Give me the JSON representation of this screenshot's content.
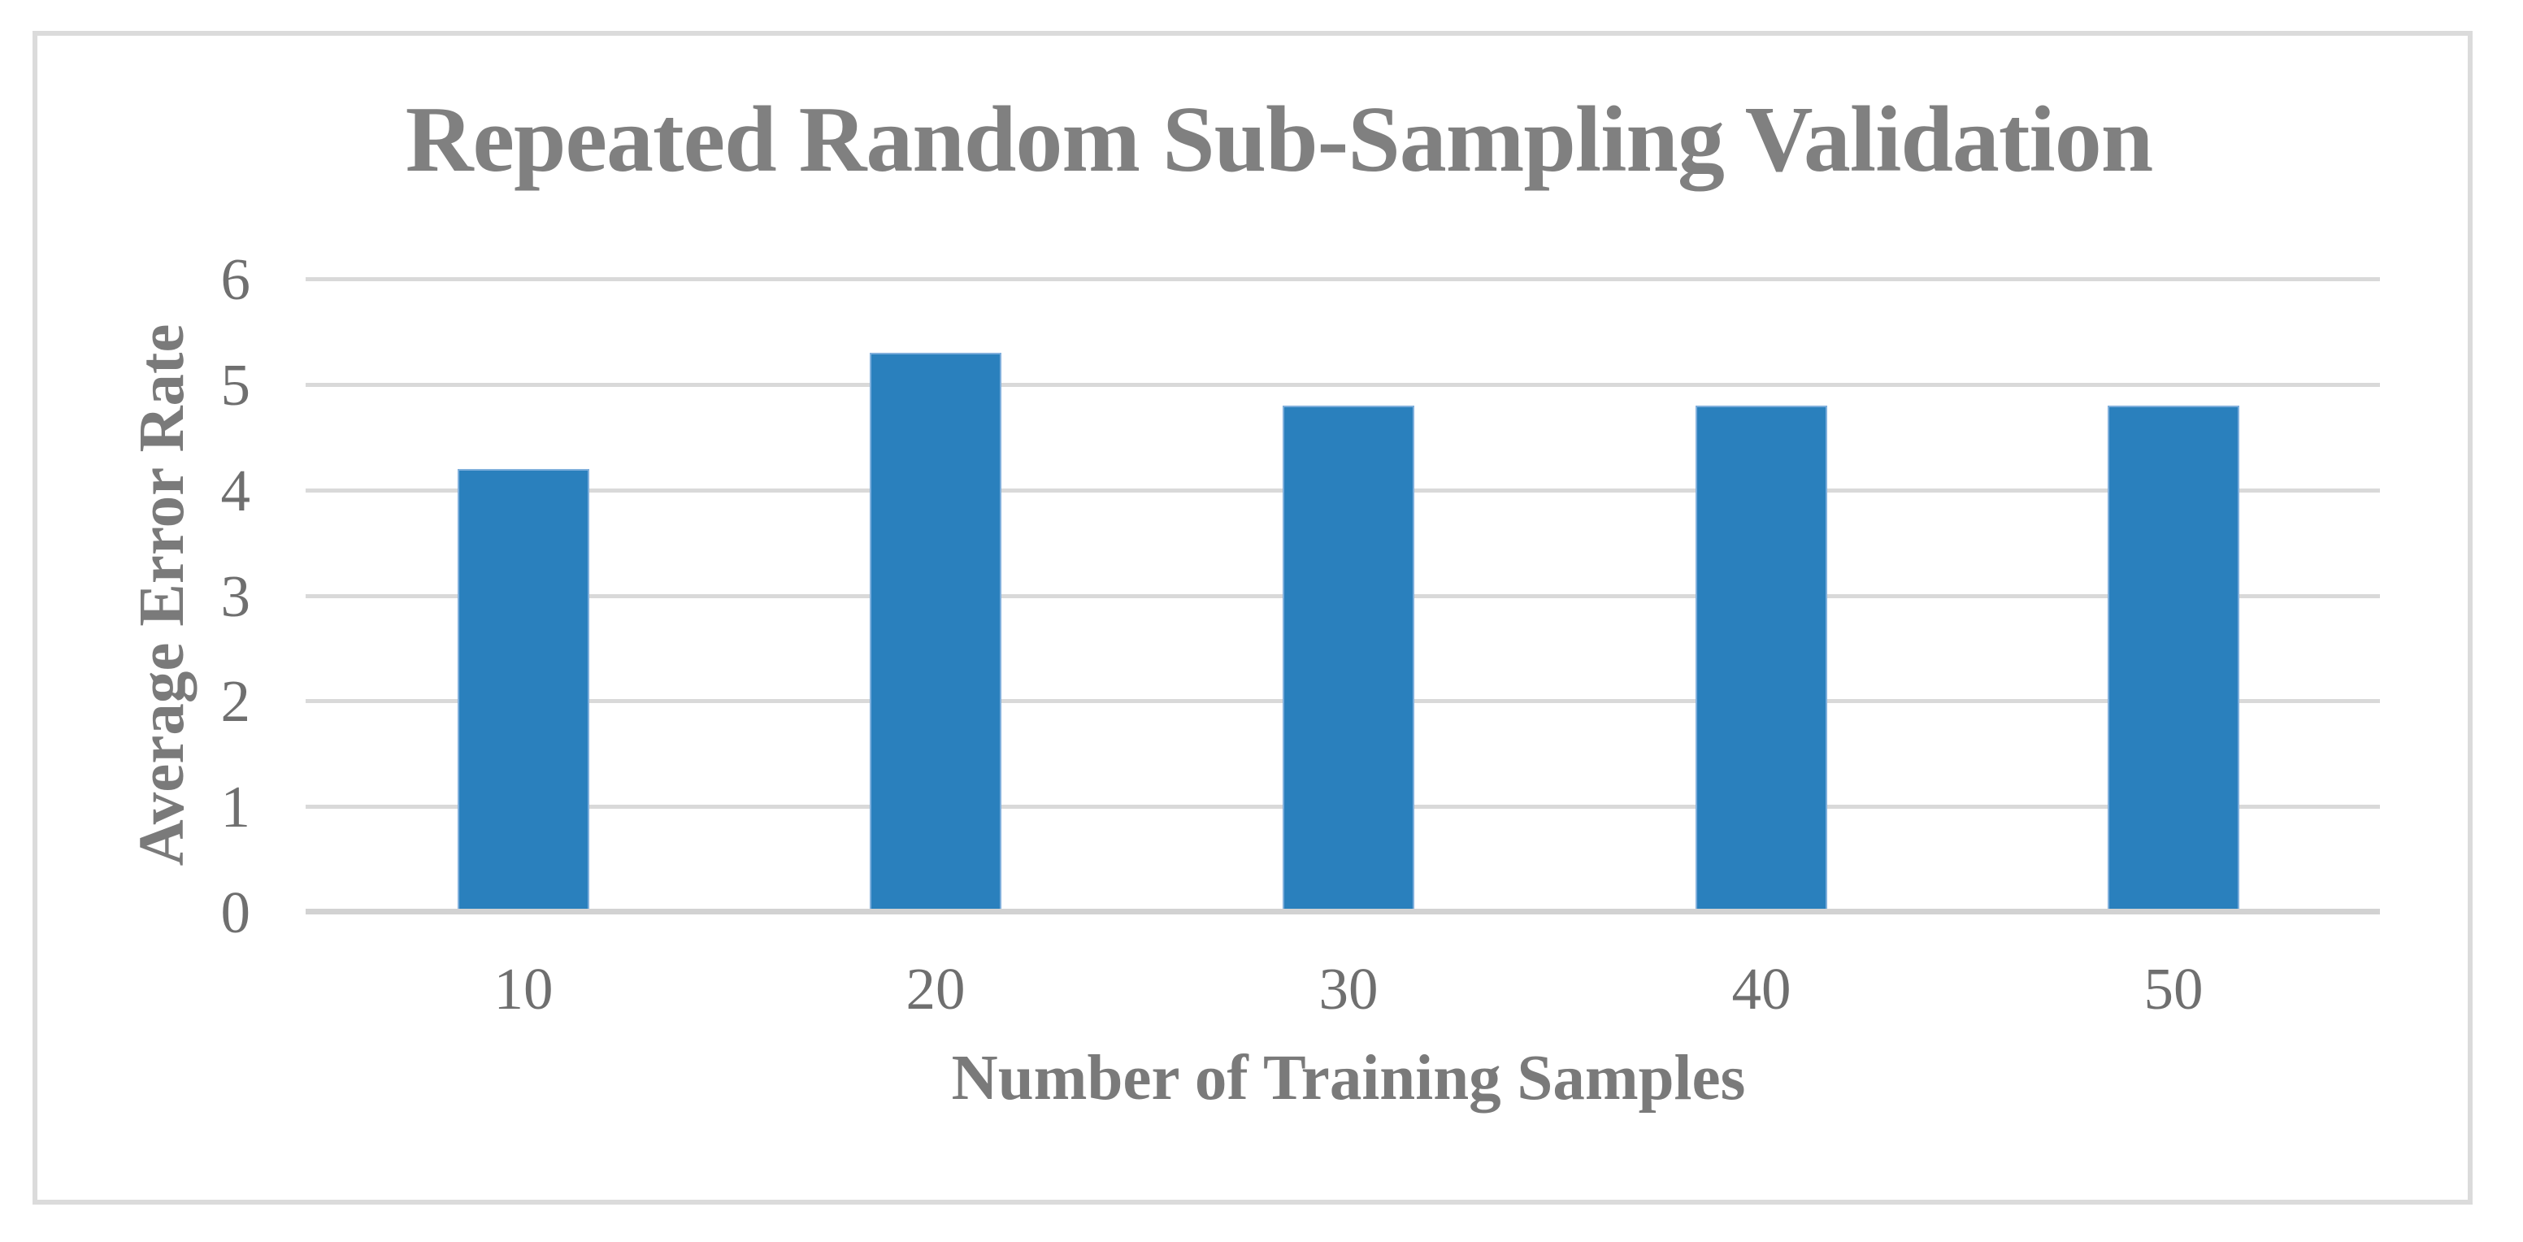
{
  "figure": {
    "title": "Repeated Random Sub-Sampling Validation"
  },
  "chart_data": {
    "type": "bar",
    "title": "Repeated Random Sub-Sampling Validation",
    "xlabel": "Number of Training Samples",
    "ylabel": "Average Error Rate",
    "categories": [
      "10",
      "20",
      "30",
      "40",
      "50"
    ],
    "values": [
      4.2,
      5.3,
      4.8,
      4.8,
      4.8
    ],
    "yticks": [
      "0",
      "1",
      "2",
      "3",
      "4",
      "5",
      "6"
    ],
    "ylim": [
      0,
      6
    ],
    "ytick_step": 1,
    "grid": "horizontal",
    "legend": "none",
    "colors": {
      "bar_fill": "#2A80BD",
      "bar_border": "#7FAFDC",
      "gridline": "#D9D9D9",
      "axis_line": "#D2D2D2",
      "frame_border": "#DBDBDB",
      "title_text": "#808080",
      "axis_title_text": "#7A7A7A",
      "tick_text": "#6F6F6F",
      "background": "#FFFFFF"
    }
  }
}
